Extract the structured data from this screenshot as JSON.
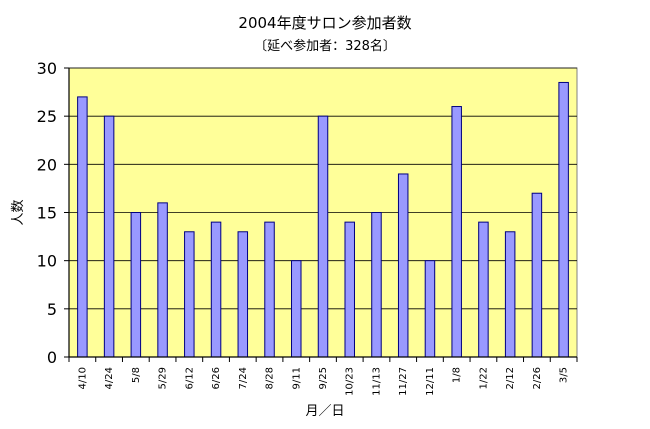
{
  "chart_data": {
    "type": "bar",
    "title": "2004年度サロン参加者数",
    "subtitle": "〔延べ参加者：328名〕",
    "xlabel": "月／日",
    "ylabel": "人数",
    "ylim": [
      0,
      30
    ],
    "yticks": [
      0,
      5,
      10,
      15,
      20,
      25,
      30
    ],
    "grid": true,
    "legend": "none",
    "categories": [
      "4/10",
      "4/24",
      "5/8",
      "5/29",
      "6/12",
      "6/26",
      "7/24",
      "8/28",
      "9/11",
      "9/25",
      "10/23",
      "11/13",
      "11/27",
      "12/11",
      "1/8",
      "1/22",
      "2/12",
      "2/26",
      "3/5"
    ],
    "values": [
      27,
      25,
      15,
      16,
      13,
      14,
      13,
      14,
      10,
      25,
      14,
      15,
      19,
      10,
      26,
      14,
      13,
      17,
      28.5
    ],
    "colors": {
      "plot_bg": "#ffff99",
      "bar_fill": "#9999ff",
      "bar_stroke": "#000080",
      "grid": "#000000"
    }
  }
}
